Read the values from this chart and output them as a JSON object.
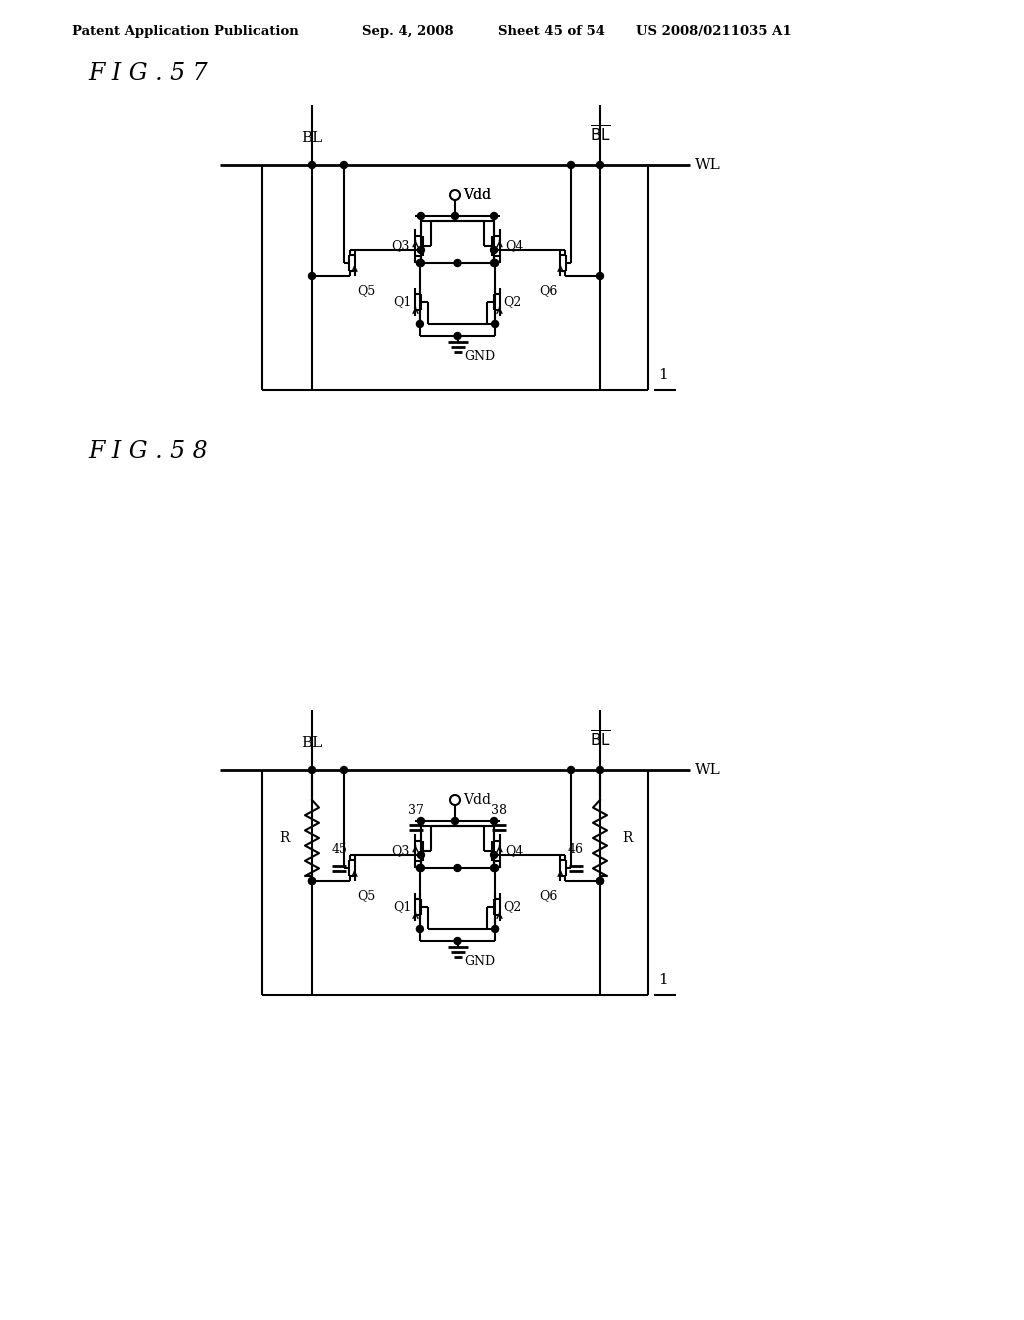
{
  "bg_color": "#ffffff",
  "line_color": "#000000",
  "header_text": "Patent Application Publication",
  "header_date": "Sep. 4, 2008",
  "header_sheet": "Sheet 45 of 54",
  "header_patent": "US 2008/0211035 A1",
  "fig57_title": "F I G . 5 7",
  "fig58_title": "F I G . 5 8"
}
